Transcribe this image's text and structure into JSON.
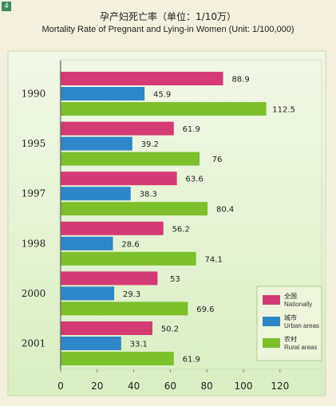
{
  "page_mark": "4",
  "chart_data": {
    "type": "bar",
    "orientation": "horizontal",
    "title": "孕产妇死亡率（单位：1/10万）",
    "subtitle": "Mortality Rate of Pregnant and Lying-in Women (Unit: 1/100,000)",
    "categories": [
      "1990",
      "1995",
      "1997",
      "1998",
      "2000",
      "2001"
    ],
    "series": [
      {
        "name": "全国",
        "name_en": "Nationally",
        "color": "#d43a74",
        "values": [
          88.9,
          61.9,
          63.6,
          56.2,
          53,
          50.2
        ]
      },
      {
        "name": "城市",
        "name_en": "Urban areas",
        "color": "#2f86c8",
        "values": [
          45.9,
          39.2,
          38.3,
          28.6,
          29.3,
          33.1
        ]
      },
      {
        "name": "农村",
        "name_en": "Rural areas",
        "color": "#7cc02c",
        "values": [
          112.5,
          76,
          80.4,
          74.1,
          69.6,
          61.9
        ]
      }
    ],
    "value_labels": [
      [
        "88.9",
        "61.9",
        "63.6",
        "56.2",
        "53",
        "50.2"
      ],
      [
        "45.9",
        "39.2",
        "38.3",
        "28.6",
        "29.3",
        "33.1"
      ],
      [
        "112.5",
        "76",
        "80.4",
        "74.1",
        "69.6",
        "61.9"
      ]
    ],
    "xlim": [
      0,
      130
    ],
    "xticks": [
      0,
      20,
      40,
      60,
      80,
      100,
      120
    ],
    "grid": false,
    "legend": "bottom-right",
    "background": "#dff0c9",
    "page_background": "#f3f0dd"
  }
}
